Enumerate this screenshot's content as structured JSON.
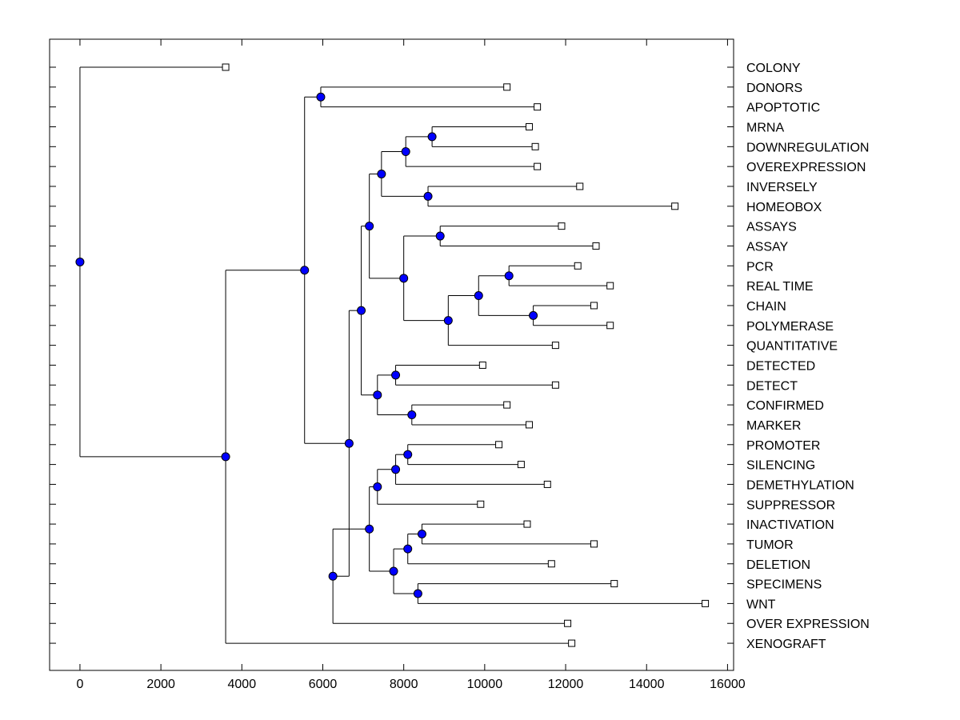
{
  "chart_data": {
    "type": "dendrogram",
    "orientation": "horizontal",
    "xlim": [
      -750,
      16150
    ],
    "xticks": [
      0,
      2000,
      4000,
      6000,
      8000,
      10000,
      12000,
      14000,
      16000
    ],
    "xtick_labels": [
      "0",
      "2000",
      "4000",
      "6000",
      "8000",
      "10000",
      "12000",
      "14000",
      "16000"
    ],
    "grid": false,
    "colors": {
      "node_fill": "#0000ff",
      "leaf_fill": "#ffffff",
      "line": "#000000"
    },
    "leaves": [
      {
        "label": "COLONY",
        "x": 3600
      },
      {
        "label": "DONORS",
        "x": 10550
      },
      {
        "label": "APOPTOTIC",
        "x": 11300
      },
      {
        "label": "MRNA",
        "x": 11100
      },
      {
        "label": "DOWNREGULATION",
        "x": 11250
      },
      {
        "label": "OVEREXPRESSION",
        "x": 11300
      },
      {
        "label": "INVERSELY",
        "x": 12350
      },
      {
        "label": "HOMEOBOX",
        "x": 14700
      },
      {
        "label": "ASSAYS",
        "x": 11900
      },
      {
        "label": "ASSAY",
        "x": 12750
      },
      {
        "label": "PCR",
        "x": 12300
      },
      {
        "label": "REAL TIME",
        "x": 13100
      },
      {
        "label": "CHAIN",
        "x": 12700
      },
      {
        "label": "POLYMERASE",
        "x": 13100
      },
      {
        "label": "QUANTITATIVE",
        "x": 11750
      },
      {
        "label": "DETECTED",
        "x": 9950
      },
      {
        "label": "DETECT",
        "x": 11750
      },
      {
        "label": "CONFIRMED",
        "x": 10550
      },
      {
        "label": "MARKER",
        "x": 11100
      },
      {
        "label": "PROMOTER",
        "x": 10350
      },
      {
        "label": "SILENCING",
        "x": 10900
      },
      {
        "label": "DEMETHYLATION",
        "x": 11550
      },
      {
        "label": "SUPPRESSOR",
        "x": 9900
      },
      {
        "label": "INACTIVATION",
        "x": 11050
      },
      {
        "label": "TUMOR",
        "x": 12700
      },
      {
        "label": "DELETION",
        "x": 11650
      },
      {
        "label": "SPECIMENS",
        "x": 13200
      },
      {
        "label": "WNT",
        "x": 15450
      },
      {
        "label": "OVER EXPRESSION",
        "x": 12050
      },
      {
        "label": "XENOGRAFT",
        "x": 12150
      }
    ],
    "merges": [
      {
        "id": "n1",
        "x": 5950,
        "children": [
          "DONORS",
          "APOPTOTIC"
        ]
      },
      {
        "id": "n2",
        "x": 8700,
        "children": [
          "MRNA",
          "DOWNREGULATION"
        ]
      },
      {
        "id": "n3",
        "x": 8050,
        "children": [
          "n2",
          "OVEREXPRESSION"
        ]
      },
      {
        "id": "n4",
        "x": 8600,
        "children": [
          "INVERSELY",
          "HOMEOBOX"
        ]
      },
      {
        "id": "n5",
        "x": 7450,
        "children": [
          "n3",
          "n4"
        ]
      },
      {
        "id": "n6",
        "x": 8900,
        "children": [
          "ASSAYS",
          "ASSAY"
        ]
      },
      {
        "id": "n7",
        "x": 10600,
        "children": [
          "PCR",
          "REAL TIME"
        ]
      },
      {
        "id": "n8",
        "x": 11200,
        "children": [
          "CHAIN",
          "POLYMERASE"
        ]
      },
      {
        "id": "n9",
        "x": 9850,
        "children": [
          "n7",
          "n8"
        ]
      },
      {
        "id": "n10",
        "x": 9100,
        "children": [
          "n9",
          "QUANTITATIVE"
        ]
      },
      {
        "id": "n11",
        "x": 8000,
        "children": [
          "n6",
          "n10"
        ]
      },
      {
        "id": "n12",
        "x": 7150,
        "children": [
          "n5",
          "n11"
        ]
      },
      {
        "id": "n13",
        "x": 7800,
        "children": [
          "DETECTED",
          "DETECT"
        ]
      },
      {
        "id": "n14",
        "x": 8200,
        "children": [
          "CONFIRMED",
          "MARKER"
        ]
      },
      {
        "id": "n15",
        "x": 7350,
        "children": [
          "n13",
          "n14"
        ]
      },
      {
        "id": "n16",
        "x": 6950,
        "children": [
          "n12",
          "n15"
        ]
      },
      {
        "id": "n17",
        "x": 8100,
        "children": [
          "PROMOTER",
          "SILENCING"
        ]
      },
      {
        "id": "n18",
        "x": 7800,
        "children": [
          "n17",
          "DEMETHYLATION"
        ]
      },
      {
        "id": "n19",
        "x": 7350,
        "children": [
          "n18",
          "SUPPRESSOR"
        ]
      },
      {
        "id": "n20",
        "x": 8450,
        "children": [
          "INACTIVATION",
          "TUMOR"
        ]
      },
      {
        "id": "n21",
        "x": 8100,
        "children": [
          "n20",
          "DELETION"
        ]
      },
      {
        "id": "n22",
        "x": 8350,
        "children": [
          "SPECIMENS",
          "WNT"
        ]
      },
      {
        "id": "n23",
        "x": 7750,
        "children": [
          "n21",
          "n22"
        ]
      },
      {
        "id": "n24",
        "x": 7150,
        "children": [
          "n19",
          "n23"
        ]
      },
      {
        "id": "n25",
        "x": 6250,
        "children": [
          "n24",
          "OVER EXPRESSION"
        ]
      },
      {
        "id": "n26",
        "x": 6650,
        "children": [
          "n16",
          "n25"
        ]
      },
      {
        "id": "n27",
        "x": 5550,
        "children": [
          "n1",
          "n26"
        ]
      },
      {
        "id": "n28",
        "x": 3600,
        "children": [
          "n27",
          "XENOGRAFT"
        ]
      },
      {
        "id": "n29",
        "x": 0,
        "children": [
          "COLONY",
          "n28"
        ]
      }
    ]
  }
}
